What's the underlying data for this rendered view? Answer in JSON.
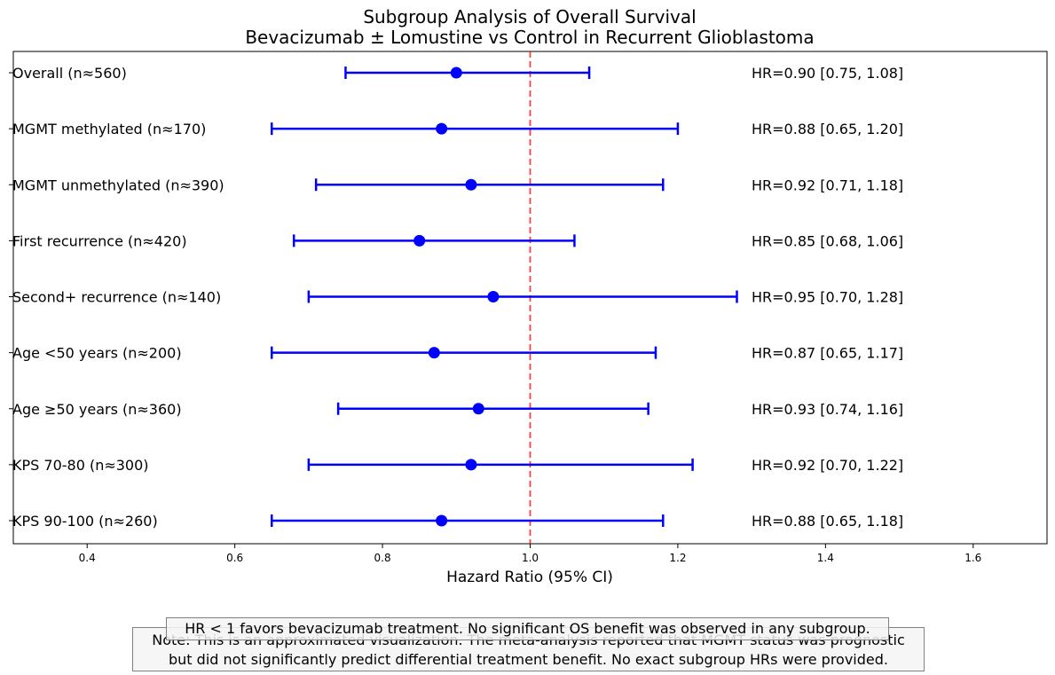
{
  "chart_data": {
    "type": "forest",
    "title": "Subgroup Analysis of Overall Survival",
    "subtitle": "Bevacizumab ± Lomustine vs Control in Recurrent Glioblastoma",
    "xlabel": "Hazard Ratio (95% CI)",
    "xlim": [
      0.3,
      1.7
    ],
    "xticks": [
      "0.4",
      "0.6",
      "0.8",
      "1.0",
      "1.2",
      "1.4",
      "1.6"
    ],
    "reference_line": 1.0,
    "grid": false,
    "colors": {
      "series": "#0000ff",
      "reference": "#ff0000"
    },
    "subgroups": [
      {
        "label": "Overall (n≈560)",
        "hr": 0.9,
        "lower": 0.75,
        "upper": 1.08,
        "text": "HR=0.90 [0.75, 1.08]"
      },
      {
        "label": "MGMT methylated (n≈170)",
        "hr": 0.88,
        "lower": 0.65,
        "upper": 1.2,
        "text": "HR=0.88 [0.65, 1.20]"
      },
      {
        "label": "MGMT unmethylated (n≈390)",
        "hr": 0.92,
        "lower": 0.71,
        "upper": 1.18,
        "text": "HR=0.92 [0.71, 1.18]"
      },
      {
        "label": "First recurrence (n≈420)",
        "hr": 0.85,
        "lower": 0.68,
        "upper": 1.06,
        "text": "HR=0.85 [0.68, 1.06]"
      },
      {
        "label": "Second+ recurrence (n≈140)",
        "hr": 0.95,
        "lower": 0.7,
        "upper": 1.28,
        "text": "HR=0.95 [0.70, 1.28]"
      },
      {
        "label": "Age <50 years (n≈200)",
        "hr": 0.87,
        "lower": 0.65,
        "upper": 1.17,
        "text": "HR=0.87 [0.65, 1.17]"
      },
      {
        "label": "Age ≥50 years (n≈360)",
        "hr": 0.93,
        "lower": 0.74,
        "upper": 1.16,
        "text": "HR=0.93 [0.74, 1.16]"
      },
      {
        "label": "KPS 70-80 (n≈300)",
        "hr": 0.92,
        "lower": 0.7,
        "upper": 1.22,
        "text": "HR=0.92 [0.70, 1.22]"
      },
      {
        "label": "KPS 90-100 (n≈260)",
        "hr": 0.88,
        "lower": 0.65,
        "upper": 1.18,
        "text": "HR=0.88 [0.65, 1.18]"
      }
    ]
  },
  "notes": {
    "hr_note": "HR < 1 favors bevacizumab treatment. No significant OS benefit was observed in any subgroup.",
    "approx_note_line1": "Note: This is an approximated visualization. The meta-analysis reported that MGMT status was prognostic",
    "approx_note_line2": "but did not significantly predict differential treatment benefit. No exact subgroup HRs were provided."
  }
}
